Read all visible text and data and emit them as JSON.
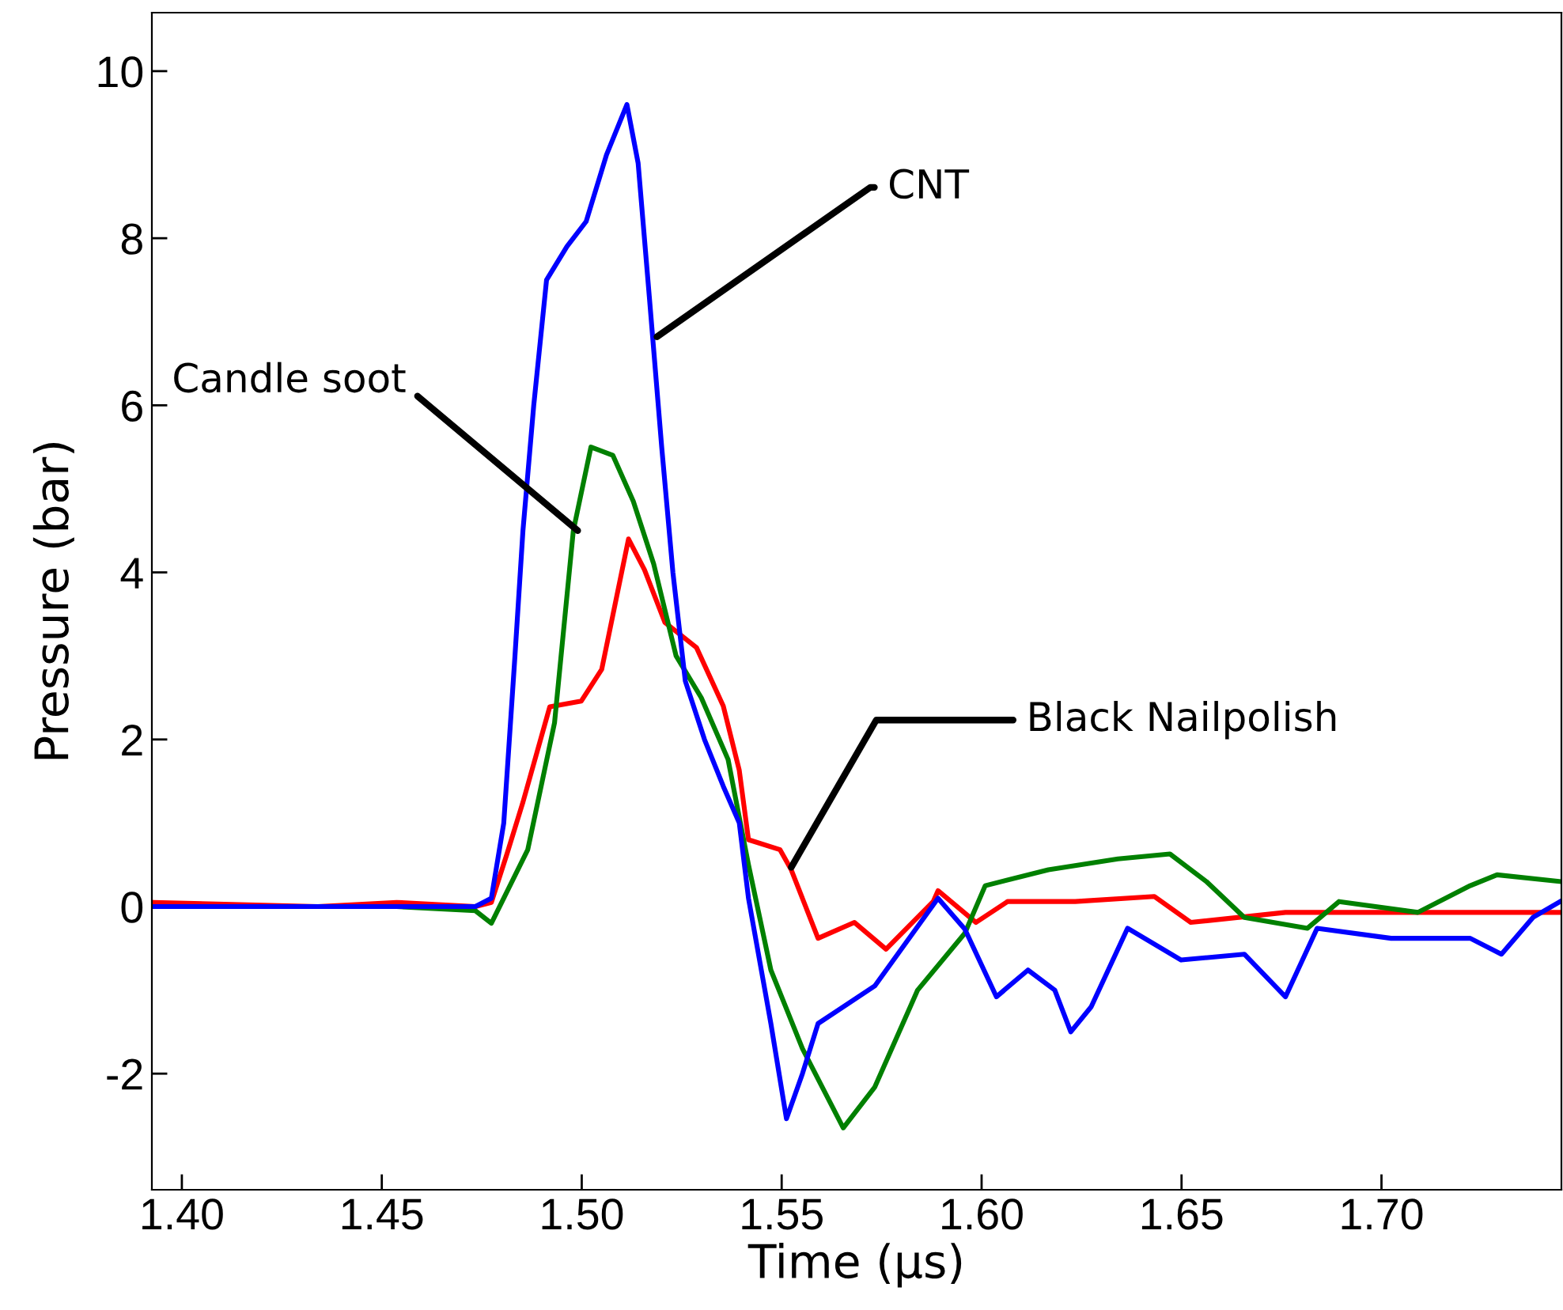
{
  "chart_data": {
    "type": "line",
    "xlabel": "Time (μs)",
    "ylabel": "Pressure (bar)",
    "xlim": [
      1.3925,
      1.745
    ],
    "ylim": [
      -3.39,
      10.7
    ],
    "xticks": [
      {
        "value": 1.4,
        "label": "1.40"
      },
      {
        "value": 1.45,
        "label": "1.45"
      },
      {
        "value": 1.5,
        "label": "1.50"
      },
      {
        "value": 1.55,
        "label": "1.55"
      },
      {
        "value": 1.6,
        "label": "1.60"
      },
      {
        "value": 1.65,
        "label": "1.65"
      },
      {
        "value": 1.7,
        "label": "1.70"
      }
    ],
    "yticks": [
      {
        "value": -2,
        "label": "-2"
      },
      0,
      2,
      4,
      6,
      8,
      10
    ],
    "grid": false,
    "legend": false,
    "marker": "none",
    "line_style": "solid",
    "series": [
      {
        "color": "#ff0000",
        "x": [
          1.3929,
          1.434,
          1.4537,
          1.4734,
          1.4774,
          1.4813,
          1.4853,
          1.492,
          1.4999,
          1.505,
          1.5117,
          1.5157,
          1.5208,
          1.5287,
          1.5354,
          1.5394,
          1.5417,
          1.5496,
          1.5524,
          1.5591,
          1.5682,
          1.5761,
          1.5879,
          1.5891,
          1.5986,
          1.6065,
          1.6234,
          1.6432,
          1.6523,
          1.676,
          1.7024,
          1.7289,
          1.7447
        ],
        "values": [
          0.05,
          0.0,
          0.05,
          0.0,
          0.05,
          0.63,
          1.25,
          2.39,
          2.46,
          2.84,
          4.4,
          4.03,
          3.4,
          3.1,
          2.4,
          1.63,
          0.8,
          0.68,
          0.44,
          -0.38,
          -0.19,
          -0.51,
          0.06,
          0.19,
          -0.19,
          0.06,
          0.06,
          0.12,
          -0.19,
          -0.07,
          -0.07,
          -0.07,
          -0.07
        ]
      },
      {
        "color": "#008000",
        "x": [
          1.3929,
          1.434,
          1.4537,
          1.4734,
          1.4774,
          1.4865,
          1.4932,
          1.4979,
          1.5023,
          1.5078,
          1.5129,
          1.518,
          1.5236,
          1.5299,
          1.5366,
          1.5417,
          1.5473,
          1.5552,
          1.5654,
          1.5733,
          1.584,
          1.5958,
          1.6009,
          1.6167,
          1.6341,
          1.6471,
          1.6562,
          1.6657,
          1.6815,
          1.6894,
          1.7091,
          1.7222,
          1.7289,
          1.7447
        ],
        "values": [
          0.0,
          0.0,
          0.0,
          -0.05,
          -0.2,
          0.68,
          2.2,
          4.5,
          5.5,
          5.4,
          4.85,
          4.1,
          3.0,
          2.5,
          1.76,
          0.5,
          -0.76,
          -1.7,
          -2.65,
          -2.16,
          -1.0,
          -0.32,
          0.25,
          0.44,
          0.57,
          0.63,
          0.3,
          -0.13,
          -0.26,
          0.06,
          -0.07,
          0.25,
          0.38,
          0.3
        ]
      },
      {
        "color": "#0000ff",
        "x": [
          1.3929,
          1.434,
          1.4537,
          1.4734,
          1.4774,
          1.4805,
          1.4833,
          1.4853,
          1.488,
          1.4912,
          1.4963,
          1.5011,
          1.5062,
          1.5113,
          1.5141,
          1.5169,
          1.52,
          1.5228,
          1.5259,
          1.5307,
          1.5354,
          1.5394,
          1.5417,
          1.5473,
          1.5512,
          1.5552,
          1.5591,
          1.5733,
          1.5891,
          1.5958,
          1.6037,
          1.6116,
          1.6183,
          1.6223,
          1.6274,
          1.6365,
          1.6499,
          1.6657,
          1.676,
          1.6839,
          1.7024,
          1.7222,
          1.73,
          1.7379,
          1.7447
        ],
        "values": [
          0.0,
          0.0,
          0.0,
          0.0,
          0.1,
          1.0,
          3.0,
          4.5,
          6.0,
          7.5,
          7.9,
          8.2,
          9.0,
          9.6,
          8.9,
          7.3,
          5.5,
          4.0,
          2.7,
          2.0,
          1.44,
          1.0,
          0.1,
          -1.4,
          -2.54,
          -2.0,
          -1.4,
          -0.95,
          0.1,
          -0.27,
          -1.08,
          -0.76,
          -1.0,
          -1.5,
          -1.2,
          -0.26,
          -0.64,
          -0.57,
          -1.08,
          -0.26,
          -0.38,
          -0.38,
          -0.57,
          -0.13,
          0.06
        ]
      }
    ],
    "annotations": [
      {
        "text": "CNT",
        "x": 1.5188,
        "y": 6.82
      },
      {
        "text": "Candle soot",
        "x": 1.499,
        "y": 4.5
      },
      {
        "text": "Black Nailpolish",
        "x": 1.5524,
        "y": 0.47
      }
    ]
  }
}
